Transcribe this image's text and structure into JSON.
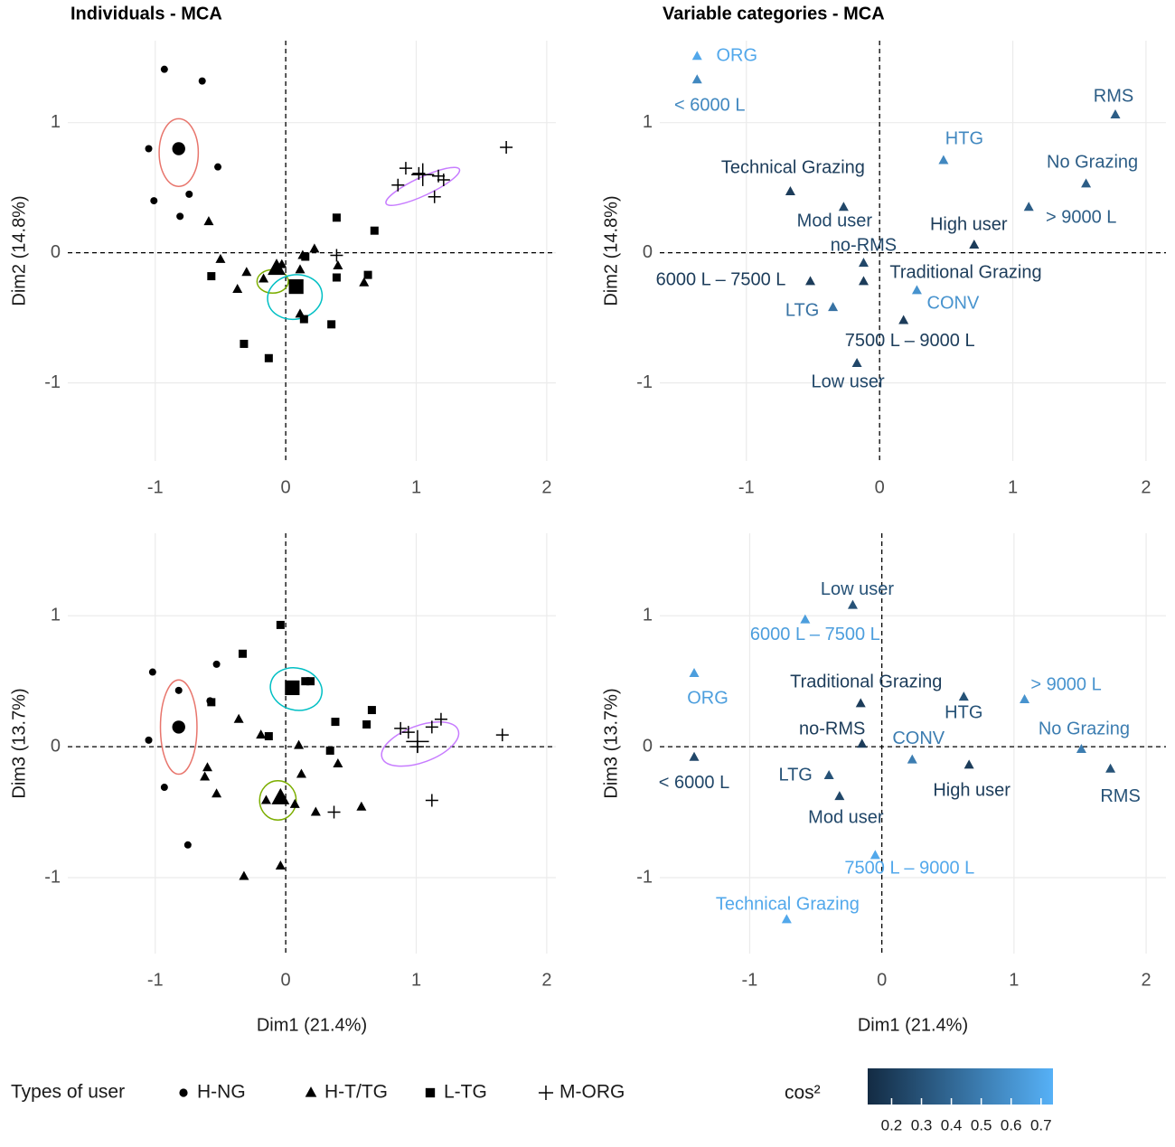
{
  "chart_data": [
    {
      "type": "individuals",
      "title": "Individuals - MCA",
      "ylabel": "Dim2 (14.8%)",
      "xlim": [
        -1.67,
        2.07
      ],
      "ylim": [
        -1.6,
        1.63
      ],
      "xticks": [
        -1,
        0,
        1,
        2
      ],
      "yticks": [
        -1,
        0,
        1
      ],
      "grid": true,
      "hline": 0,
      "vline": 0,
      "series": [
        {
          "name": "H-NG",
          "symbol": "circle",
          "color": "#e8756c",
          "x": [
            -0.93,
            -0.64,
            -1.05,
            -0.52,
            -1.01,
            -0.74,
            -0.81
          ],
          "y": [
            1.41,
            1.32,
            0.8,
            0.66,
            0.4,
            0.45,
            0.28
          ],
          "centroid": [
            -0.82,
            0.8
          ],
          "ellipse": {
            "cx": -0.82,
            "cy": 0.77,
            "rx": 0.15,
            "ry": 0.26,
            "angle": 0
          }
        },
        {
          "name": "H-T/TG",
          "symbol": "triangle",
          "color": "#7cae00",
          "x": [
            -0.59,
            -0.5,
            -0.3,
            -0.37,
            -0.17,
            0.13,
            0.22,
            0.11,
            0.11,
            0.4,
            0.6,
            -0.03
          ],
          "y": [
            0.24,
            -0.05,
            -0.15,
            -0.28,
            -0.2,
            -0.02,
            0.03,
            -0.13,
            -0.47,
            -0.1,
            -0.23,
            -0.09
          ],
          "centroid": [
            -0.07,
            -0.12
          ],
          "ellipse": {
            "cx": -0.1,
            "cy": -0.22,
            "rx": 0.12,
            "ry": 0.09,
            "angle": 0
          }
        },
        {
          "name": "L-TG",
          "symbol": "square",
          "color": "#00bfc4",
          "x": [
            0.39,
            0.68,
            -0.57,
            0.63,
            0.39,
            0.14,
            0.35,
            -0.32,
            -0.13,
            0.06,
            0.15
          ],
          "y": [
            0.27,
            0.17,
            -0.18,
            -0.17,
            -0.19,
            -0.51,
            -0.55,
            -0.7,
            -0.81,
            -0.24,
            -0.03
          ],
          "centroid": [
            0.08,
            -0.26
          ],
          "ellipse": {
            "cx": 0.07,
            "cy": -0.34,
            "rx": 0.21,
            "ry": 0.17,
            "angle": 10
          }
        },
        {
          "name": "M-ORG",
          "symbol": "plus",
          "color": "#c77cff",
          "x": [
            1.69,
            0.92,
            1.02,
            0.86,
            1.17,
            1.21,
            1.14,
            0.39
          ],
          "y": [
            0.81,
            0.65,
            0.61,
            0.52,
            0.59,
            0.56,
            0.43,
            -0.02
          ],
          "centroid": [
            1.05,
            0.6
          ],
          "ellipse": {
            "cx": 1.05,
            "cy": 0.51,
            "rx": 0.31,
            "ry": 0.07,
            "angle": 25
          }
        }
      ]
    },
    {
      "type": "variables",
      "title": "Variable categories - MCA",
      "ylabel": "Dim2 (14.8%)",
      "xlim": [
        -1.65,
        2.15
      ],
      "ylim": [
        -1.6,
        1.63
      ],
      "xticks": [
        -1,
        0,
        1,
        2
      ],
      "yticks": [
        -1,
        0,
        1
      ],
      "grid": true,
      "hline": 0,
      "vline": 0,
      "labels": [
        "ORG",
        "< 6000 L",
        "RMS",
        "HTG",
        "No Grazing",
        "Technical Grazing",
        "Mod user",
        "> 9000 L",
        "High user",
        "no-RMS",
        "Traditional Grazing",
        "6000 L – 7500 L",
        "CONV",
        "LTG",
        "7500 L – 9000 L",
        "Low user"
      ],
      "x": [
        -1.37,
        -1.37,
        1.77,
        0.48,
        1.55,
        -0.67,
        -0.27,
        1.12,
        0.71,
        -0.12,
        -0.12,
        -0.52,
        0.28,
        -0.35,
        0.18,
        -0.17
      ],
      "y": [
        1.51,
        1.33,
        1.06,
        0.71,
        0.53,
        0.47,
        0.35,
        0.35,
        0.06,
        -0.08,
        -0.22,
        -0.22,
        -0.29,
        -0.42,
        -0.52,
        -0.85
      ],
      "cos2": [
        0.7,
        0.55,
        0.35,
        0.55,
        0.35,
        0.2,
        0.25,
        0.35,
        0.2,
        0.25,
        0.2,
        0.2,
        0.6,
        0.45,
        0.2,
        0.25
      ]
    },
    {
      "type": "individuals",
      "xlabel": "Dim1 (21.4%)",
      "ylabel": "Dim3 (13.7%)",
      "xlim": [
        -1.67,
        2.07
      ],
      "ylim": [
        -1.58,
        1.63
      ],
      "xticks": [
        -1,
        0,
        1,
        2
      ],
      "yticks": [
        -1,
        0,
        1
      ],
      "grid": true,
      "hline": 0,
      "vline": 0,
      "series": [
        {
          "x": [
            -1.02,
            -0.53,
            -0.82,
            -1.05,
            -0.93,
            -0.58,
            -0.75
          ],
          "y": [
            0.57,
            0.63,
            0.43,
            0.05,
            -0.31,
            0.35,
            -0.75
          ],
          "centroid": [
            -0.82,
            0.15
          ],
          "ellipse": {
            "cx": -0.82,
            "cy": 0.15,
            "rx": 0.14,
            "ry": 0.36,
            "angle": 0
          }
        },
        {
          "x": [
            -0.36,
            -0.6,
            -0.62,
            -0.53,
            -0.19,
            0.1,
            0.4,
            0.12,
            0.23,
            0.58,
            -0.32,
            -0.04,
            -0.15,
            0.07
          ],
          "y": [
            0.21,
            -0.16,
            -0.23,
            -0.36,
            0.09,
            0.01,
            -0.13,
            -0.21,
            -0.5,
            -0.46,
            -0.99,
            -0.91,
            -0.41,
            -0.44
          ],
          "centroid": [
            -0.04,
            -0.39
          ],
          "ellipse": {
            "cx": -0.06,
            "cy": -0.41,
            "rx": 0.14,
            "ry": 0.15,
            "angle": 0
          }
        },
        {
          "x": [
            -0.04,
            -0.33,
            -0.57,
            0.05,
            0.15,
            0.19,
            0.66,
            0.38,
            0.62,
            -0.13,
            0.34
          ],
          "y": [
            0.93,
            0.71,
            0.34,
            0.46,
            0.5,
            0.5,
            0.28,
            0.19,
            0.17,
            0.08,
            -0.03
          ],
          "centroid": [
            0.05,
            0.45
          ],
          "ellipse": {
            "cx": 0.08,
            "cy": 0.44,
            "rx": 0.2,
            "ry": 0.16,
            "angle": -15
          }
        },
        {
          "x": [
            1.66,
            0.88,
            0.94,
            1.01,
            1.12,
            1.19,
            1.12,
            0.37
          ],
          "y": [
            0.09,
            0.14,
            0.11,
            0.0,
            0.15,
            0.21,
            -0.41,
            -0.5
          ],
          "centroid": [
            1.01,
            0.04
          ],
          "ellipse": {
            "cx": 1.03,
            "cy": 0.02,
            "rx": 0.31,
            "ry": 0.14,
            "angle": 20
          }
        }
      ]
    },
    {
      "type": "variables",
      "xlabel": "Dim1 (21.4%)",
      "ylabel": "Dim3 (13.7%)",
      "xlim": [
        -1.68,
        2.15
      ],
      "ylim": [
        -1.58,
        1.63
      ],
      "xticks": [
        -1,
        0,
        1,
        2
      ],
      "yticks": [
        -1,
        0,
        1
      ],
      "grid": true,
      "hline": 0,
      "vline": 0,
      "labels": [
        "Low user",
        "6000 L – 7500 L",
        "ORG",
        "Traditional Grazing",
        "HTG",
        "> 9000 L",
        "no-RMS",
        "No Grazing",
        "CONV",
        "< 6000 L",
        "High user",
        "RMS",
        "LTG",
        "Mod user",
        "7500 L – 9000 L",
        "Technical Grazing"
      ],
      "x": [
        -0.22,
        -0.58,
        -1.42,
        -0.16,
        0.62,
        1.08,
        -0.15,
        1.51,
        0.23,
        -1.42,
        0.66,
        1.73,
        -0.4,
        -0.32,
        -0.05,
        -0.72
      ],
      "y": [
        1.08,
        0.97,
        0.56,
        0.33,
        0.38,
        0.36,
        0.02,
        -0.02,
        -0.1,
        -0.08,
        -0.14,
        -0.17,
        -0.22,
        -0.38,
        -0.83,
        -1.32
      ],
      "cos2": [
        0.3,
        0.65,
        0.65,
        0.2,
        0.3,
        0.6,
        0.2,
        0.5,
        0.5,
        0.25,
        0.2,
        0.3,
        0.3,
        0.25,
        0.7,
        0.7
      ]
    }
  ],
  "legend": {
    "title": "Types of user"
  },
  "color_scale": {
    "title": "cos²",
    "lim": [
      0.12,
      0.74
    ],
    "ticks": [
      0.2,
      0.3,
      0.4,
      0.5,
      0.6,
      0.7
    ],
    "low": "#132b43",
    "high": "#56b1f7"
  }
}
